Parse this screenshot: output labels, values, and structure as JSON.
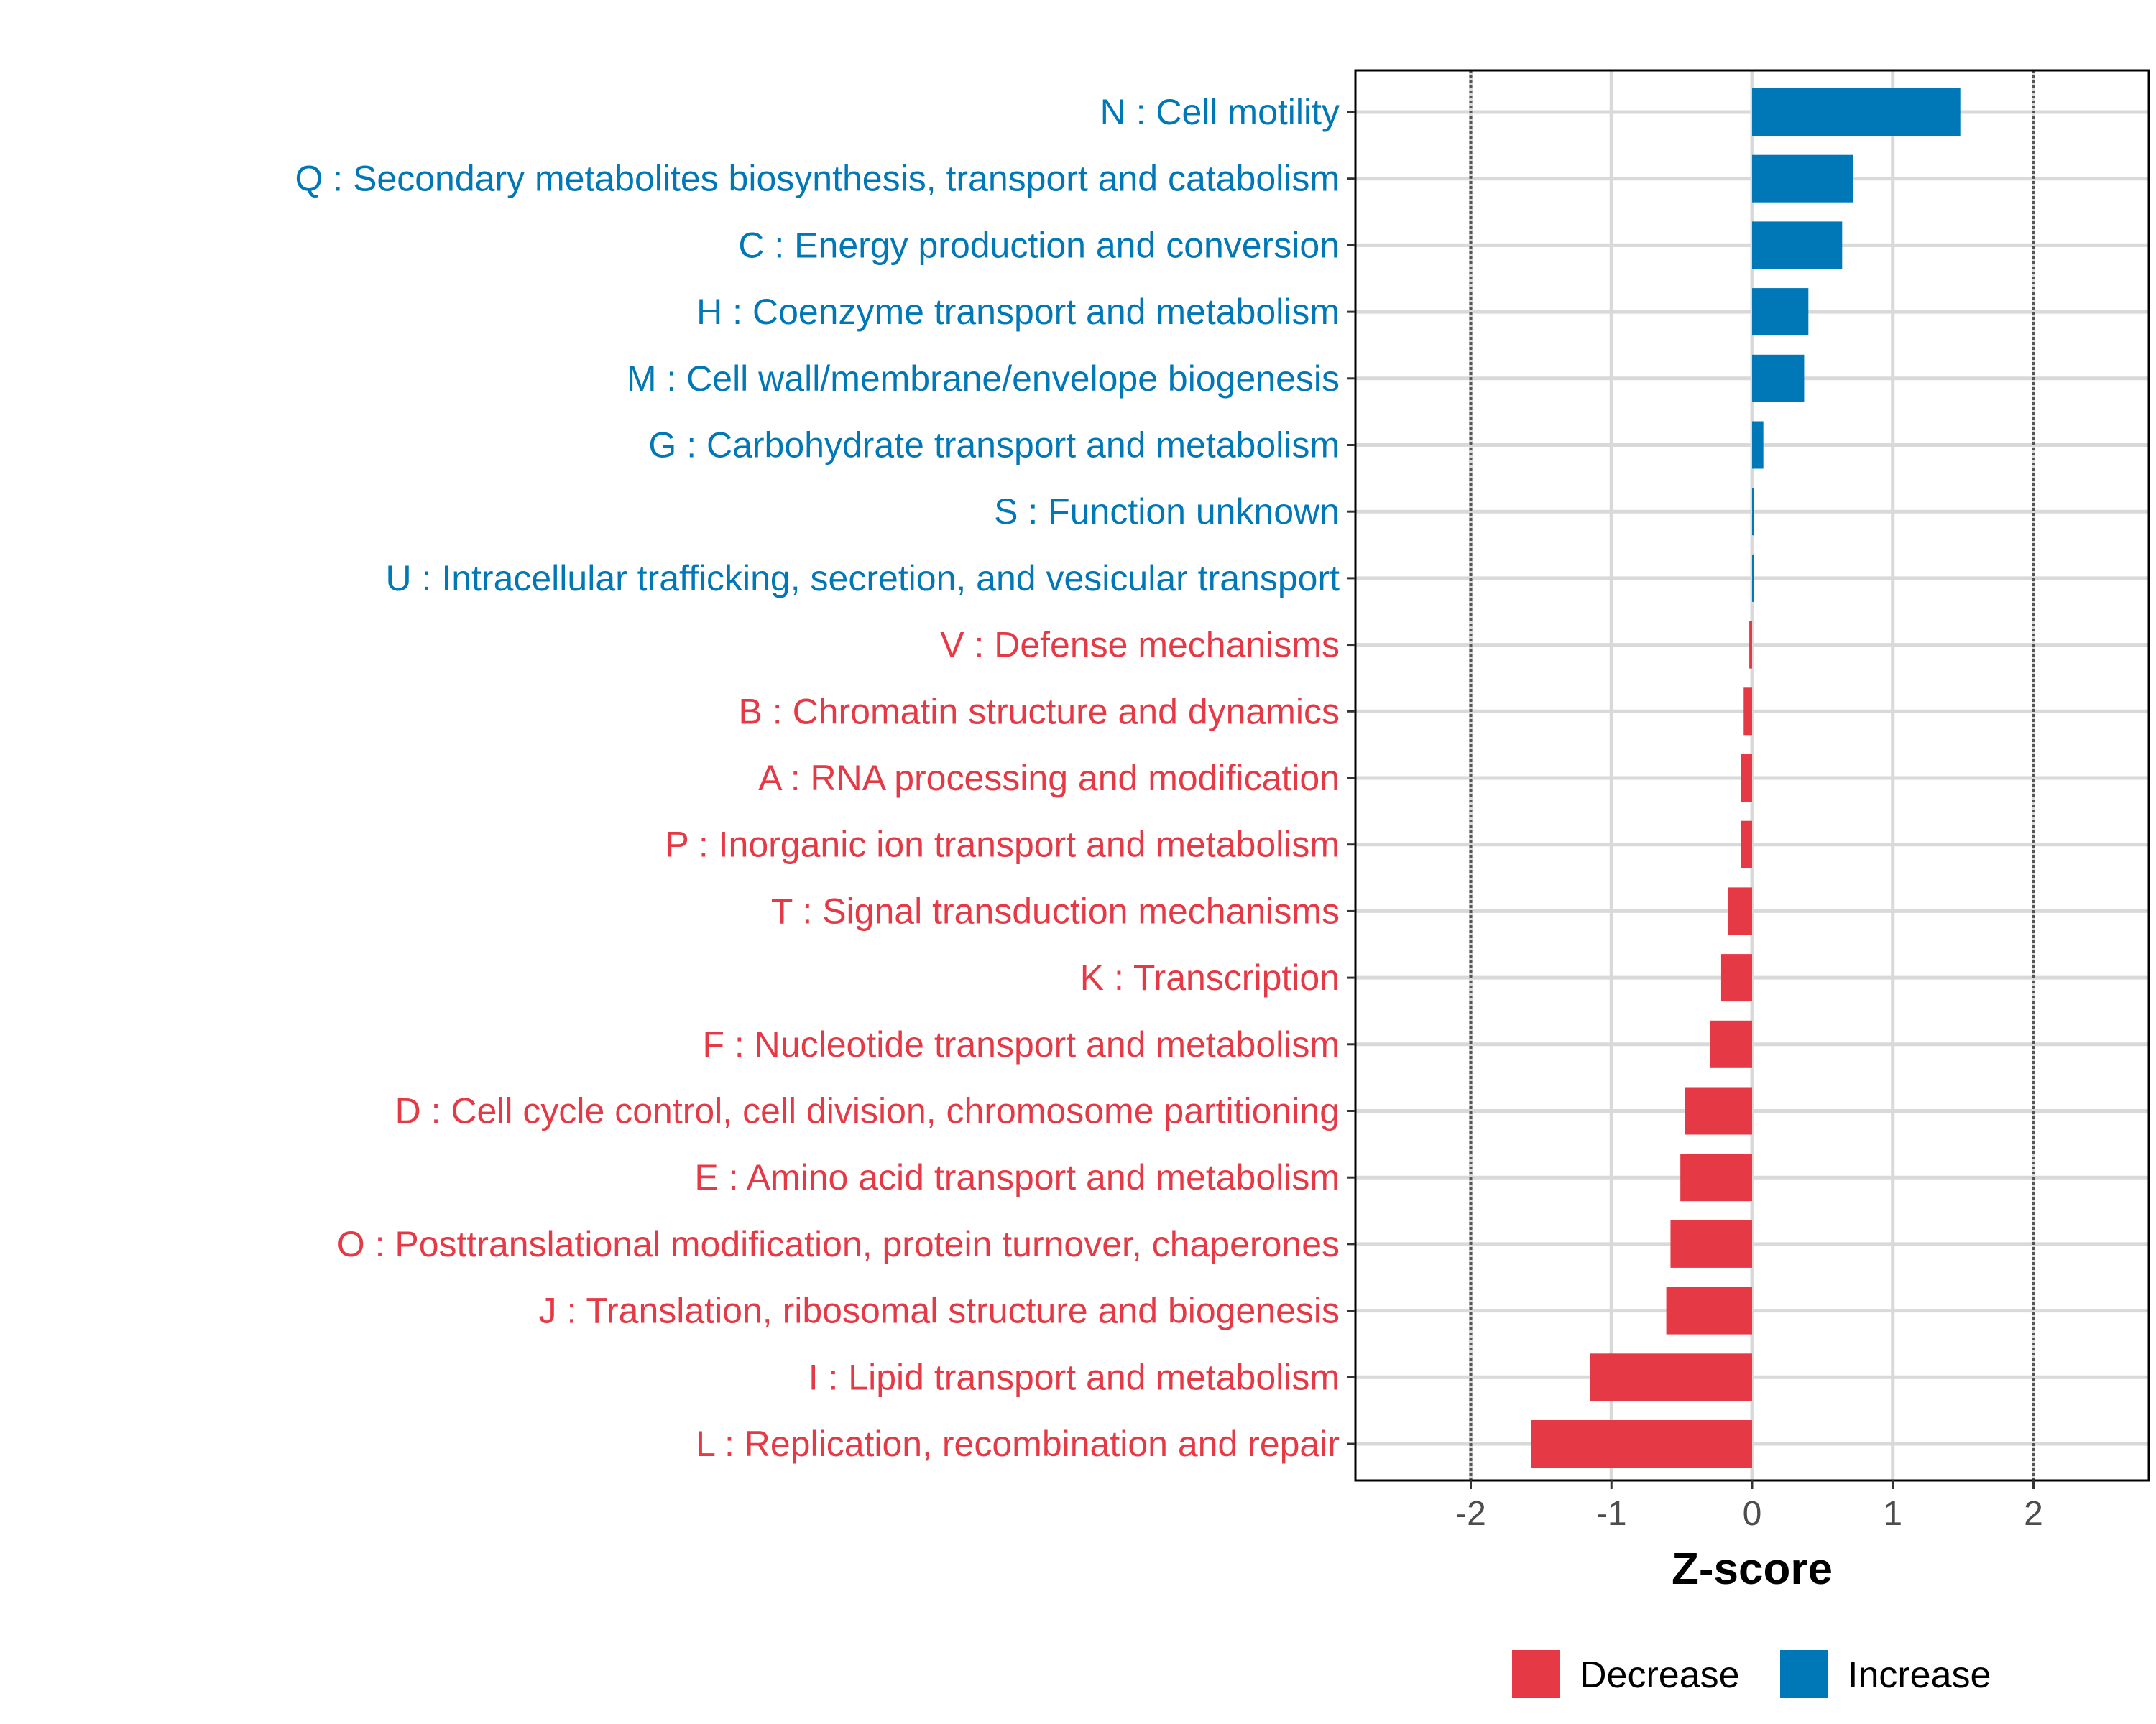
{
  "chart_data": {
    "type": "bar",
    "orientation": "horizontal",
    "xlabel": "Z-score",
    "ylabel": "",
    "xlim": [
      -2.82,
      2.82
    ],
    "xticks": [
      -2,
      -1,
      0,
      1,
      2
    ],
    "xtick_labels": [
      "-2",
      "-1",
      "0",
      "1",
      "2"
    ],
    "reference_lines": [
      -2,
      2
    ],
    "grid": true,
    "categories": [
      "N : Cell motility",
      "Q : Secondary metabolites biosynthesis, transport and catabolism",
      "C : Energy production and conversion",
      "H : Coenzyme transport and metabolism",
      "M : Cell wall/membrane/envelope biogenesis",
      "G : Carbohydrate transport and metabolism",
      "S : Function unknown",
      "U : Intracellular trafficking, secretion, and vesicular transport",
      "V : Defense mechanisms",
      "B : Chromatin structure and dynamics",
      "A : RNA processing and modification",
      "P : Inorganic ion transport and metabolism",
      "T : Signal transduction mechanisms",
      "K : Transcription",
      "F : Nucleotide transport and metabolism",
      "D : Cell cycle control, cell division, chromosome partitioning",
      "E : Amino acid transport and metabolism",
      "O : Posttranslational modification, protein turnover, chaperones",
      "J : Translation, ribosomal structure and biogenesis",
      "I : Lipid transport and metabolism",
      "L : Replication, recombination and repair"
    ],
    "values": [
      1.48,
      0.72,
      0.64,
      0.4,
      0.37,
      0.08,
      0.01,
      0.005,
      -0.02,
      -0.06,
      -0.08,
      -0.08,
      -0.17,
      -0.22,
      -0.3,
      -0.48,
      -0.51,
      -0.58,
      -0.61,
      -1.15,
      -1.57
    ],
    "legend": {
      "placement": "bottom",
      "entries": [
        {
          "label": "Decrease",
          "color": "#E63946"
        },
        {
          "label": "Increase",
          "color": "#0077B6"
        }
      ]
    }
  },
  "colors": {
    "increase": "#0077B6",
    "decrease": "#E63946",
    "grid": "#D9D9D9",
    "tick_text": "#4D4D4D"
  }
}
